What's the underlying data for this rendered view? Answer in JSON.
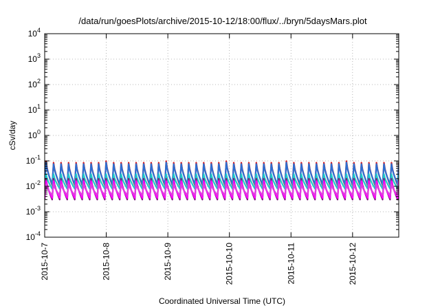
{
  "chart_data": {
    "type": "line",
    "title": "/data/run/goesPlots/archive/2015-10-12/18:00/flux/../bryn/5daysMars.plot",
    "xlabel": "Coordinated Universal Time (UTC)",
    "ylabel": "cSv/day",
    "y_scale": "log",
    "ylim": [
      0.0001,
      10000
    ],
    "y_ticks": [
      {
        "base": "10",
        "exp": "-4",
        "value": 0.0001
      },
      {
        "base": "10",
        "exp": "-3",
        "value": 0.001
      },
      {
        "base": "10",
        "exp": "-2",
        "value": 0.01
      },
      {
        "base": "10",
        "exp": "-1",
        "value": 0.1
      },
      {
        "base": "10",
        "exp": "0",
        "value": 1
      },
      {
        "base": "10",
        "exp": "1",
        "value": 10
      },
      {
        "base": "10",
        "exp": "2",
        "value": 100
      },
      {
        "base": "10",
        "exp": "3",
        "value": 1000
      },
      {
        "base": "10",
        "exp": "4",
        "value": 10000
      }
    ],
    "xlim": [
      "2015-10-07",
      "2015-10-12T18:00"
    ],
    "x_ticks": [
      "2015-10-7",
      "2015-10-8",
      "2015-10-9",
      "2015-10-10",
      "2015-10-11",
      "2015-10-12"
    ],
    "grid": true,
    "legend": "none",
    "pattern": {
      "description_values": "sawtooth series: rises at each cycle start to peak, then decays to trough",
      "cycles_per_day": 8.2,
      "first_peak_extra": 0.015
    },
    "series": [
      {
        "color": "#d7191c",
        "peak": 0.085,
        "trough": 0.011
      },
      {
        "color": "#2c6fd1",
        "peak": 0.075,
        "trough": 0.012
      },
      {
        "color": "#1fc9c9",
        "peak": 0.03,
        "trough": 0.008
      },
      {
        "color": "#7b1e7a",
        "peak": 0.02,
        "trough": 0.003
      },
      {
        "color": "#ff00ff",
        "peak": 0.016,
        "trough": 0.0035
      },
      {
        "color": "#e040e0",
        "peak": 0.012,
        "trough": 0.0045
      }
    ]
  }
}
